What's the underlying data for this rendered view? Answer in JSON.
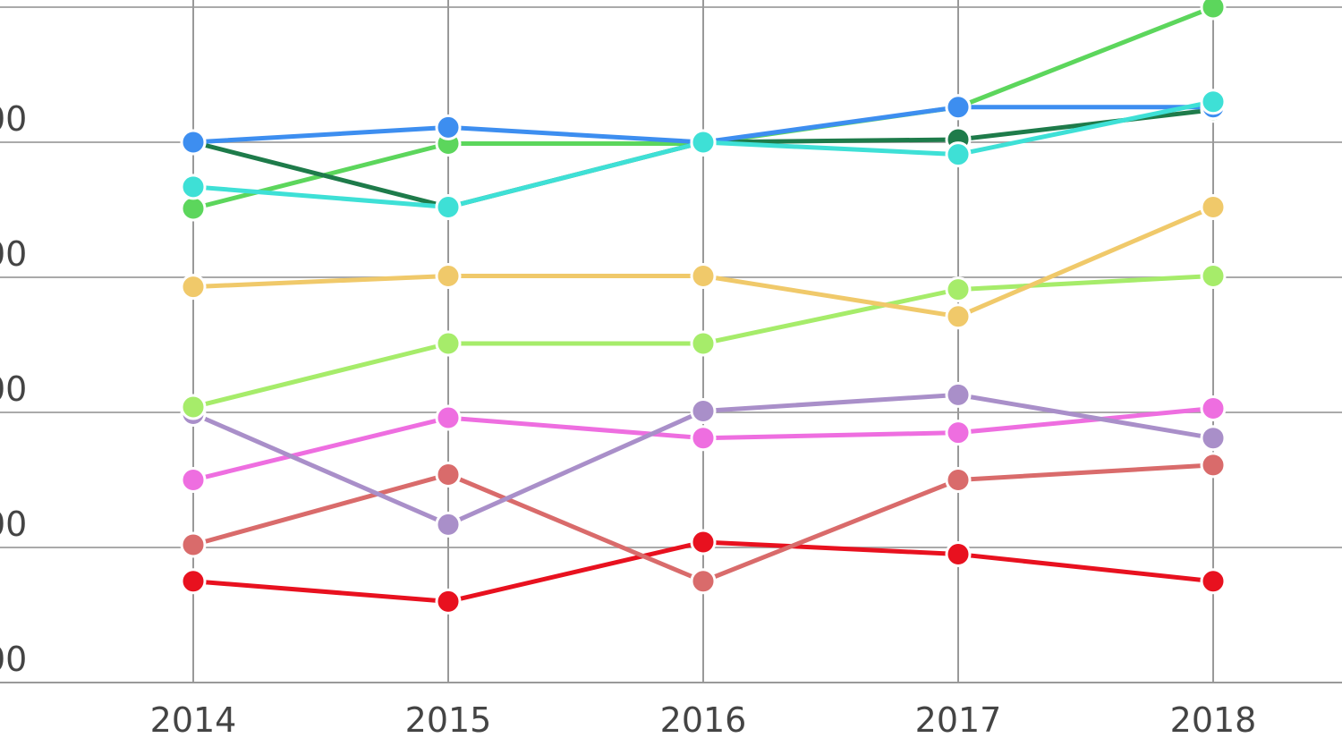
{
  "chart_data": {
    "type": "line",
    "title": "",
    "xlabel": "",
    "ylabel": "",
    "x": [
      2014,
      2015,
      2016,
      2017,
      2018
    ],
    "x_tick_labels": [
      "2014",
      "2015",
      "2016",
      "2017",
      "2018"
    ],
    "y_tick_labels": [
      "00",
      "00",
      "00",
      "00",
      "00"
    ],
    "y_tick_values": [
      0,
      1,
      2,
      3,
      4
    ],
    "ylim": [
      0,
      5
    ],
    "grid": true,
    "legend": "none",
    "series": [
      {
        "color": "#e8111f",
        "values": [
          0.75,
          0.6,
          1.04,
          0.95,
          0.75
        ]
      },
      {
        "color": "#d96b6b",
        "values": [
          1.02,
          1.54,
          0.75,
          1.5,
          1.61
        ]
      },
      {
        "color": "#ee6ee0",
        "values": [
          1.5,
          1.96,
          1.81,
          1.85,
          2.03
        ]
      },
      {
        "color": "#a98fc9",
        "values": [
          1.99,
          1.17,
          2.01,
          2.13,
          1.81
        ]
      },
      {
        "color": "#a6ec6a",
        "values": [
          2.04,
          2.51,
          2.51,
          2.91,
          3.01
        ]
      },
      {
        "color": "#f0c96a",
        "values": [
          2.93,
          3.01,
          3.01,
          2.71,
          3.52
        ]
      },
      {
        "color": "#5cd65c",
        "values": [
          3.51,
          3.99,
          3.99,
          4.26,
          5.0
        ]
      },
      {
        "color": "#1e7b4a",
        "values": [
          4.0,
          3.52,
          4.0,
          4.02,
          4.24
        ]
      },
      {
        "color": "#3d8ef0",
        "values": [
          4.0,
          4.11,
          4.0,
          4.26,
          4.26
        ]
      },
      {
        "color": "#3ee0d6",
        "values": [
          3.67,
          3.52,
          4.0,
          3.91,
          4.3
        ]
      }
    ]
  }
}
